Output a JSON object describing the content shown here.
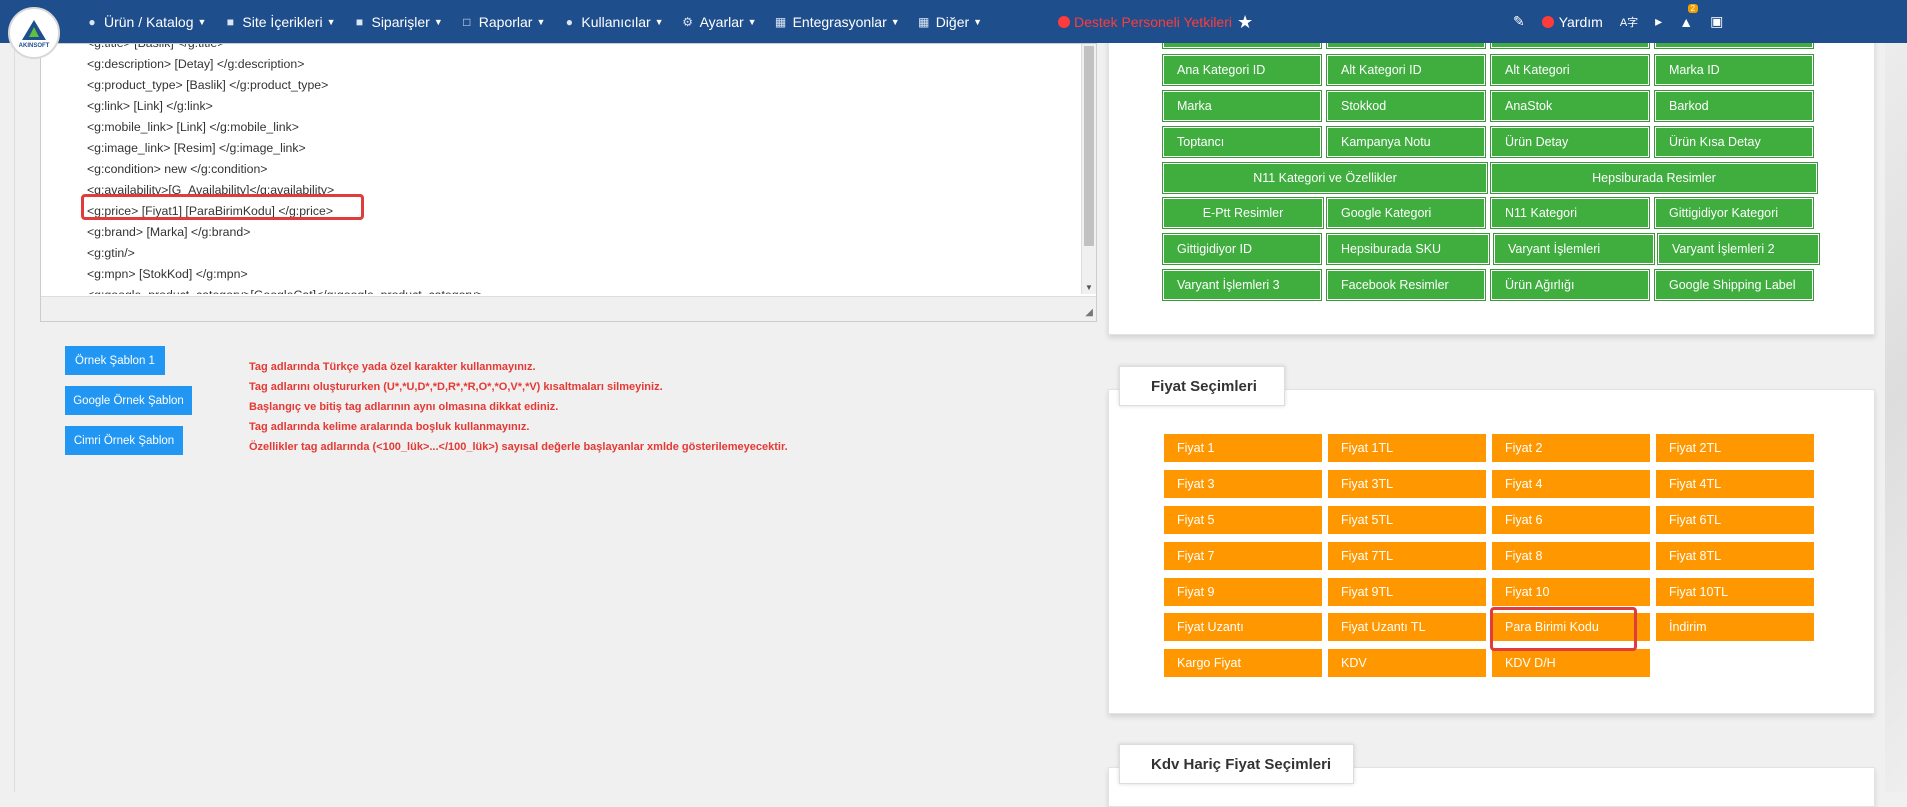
{
  "nav": {
    "logo_text": "AKINSOFT",
    "menu": [
      {
        "label": "Ürün / Katalog",
        "icon": "users-icon"
      },
      {
        "label": "Site İçerikleri",
        "icon": "files-icon"
      },
      {
        "label": "Siparişler",
        "icon": "truck-icon"
      },
      {
        "label": "Raporlar",
        "icon": "report-icon"
      },
      {
        "label": "Kullanıcılar",
        "icon": "user-group-icon"
      },
      {
        "label": "Ayarlar",
        "icon": "gears-icon"
      },
      {
        "label": "Entegrasyonlar",
        "icon": "sitemap-icon"
      },
      {
        "label": "Diğer",
        "icon": "grid-icon"
      }
    ],
    "support": "Destek Personeli Yetkileri",
    "help": "Yardım",
    "lang": "A字",
    "badge": "2"
  },
  "editor": {
    "lines": [
      "<g:description> [Detay] </g:description>",
      "<g:product_type> [Baslik] </g:product_type>",
      "<g:link> [Link] </g:link>",
      "<g:mobile_link> [Link] </g:mobile_link>",
      "<g:image_link> [Resim] </g:image_link>",
      "<g:condition> new </g:condition>",
      "<g:availability>[G_Availability]</g:availability>",
      "<g:price> [Fiyat1] [ParaBirimKodu] </g:price>",
      "<g:brand> [Marka] </g:brand>",
      "<g:gtin/>",
      "<g:mpn> [StokKod] </g:mpn>",
      "<g:google_product_category>[GoogleCat]</g:google_product_category>"
    ],
    "first_line": "<g:title> [Baslik] </g:title>"
  },
  "templates": {
    "ornek": "Örnek Şablon 1",
    "google": "Google Örnek Şablon",
    "cimri": "Cimri Örnek Şablon"
  },
  "warnings": [
    "Tag adlarında Türkçe yada özel karakter kullanmayınız.",
    "Tag adlarını oluştururken (U*,*U,D*,*D,R*,*R,O*,*O,V*,*V) kısaltmaları silmeyiniz.",
    "Başlangıç ve bitiş tag adlarının aynı olmasına dikkat ediniz.",
    "Tag adlarında kelime aralarında boşluk kullanmayınız.",
    "Özellikler tag adlarında (<100_lük>...</100_lük>) sayısal değerle başlayanlar xmlde gösterilemeyecektir."
  ],
  "product_fields": {
    "row1": [
      "Ana Kategori ID",
      "Alt Kategori ID",
      "Alt Kategori",
      "Marka ID"
    ],
    "row2": [
      "Marka",
      "Stokkod",
      "AnaStok",
      "Barkod"
    ],
    "row3": [
      "Toptancı",
      "Kampanya Notu",
      "Ürün Detay",
      "Ürün Kısa Detay"
    ],
    "row4": [
      "N11 Kategori ve Özellikler",
      "Hepsiburada Resimler"
    ],
    "row5": [
      "E-Ptt Resimler",
      "Google Kategori",
      "N11 Kategori",
      "Gittigidiyor Kategori"
    ],
    "row6": [
      "Gittigidiyor ID",
      "Hepsiburada SKU",
      "Varyant İşlemleri",
      "Varyant İşlemleri 2"
    ],
    "row7": [
      "Varyant İşlemleri 3",
      "Facebook Resimler",
      "Ürün Ağırlığı",
      "Google Shipping Label"
    ]
  },
  "price_section": {
    "title": "Fiyat Seçimleri",
    "buttons": [
      [
        "Fiyat 1",
        "Fiyat 1TL",
        "Fiyat 2",
        "Fiyat 2TL"
      ],
      [
        "Fiyat 3",
        "Fiyat 3TL",
        "Fiyat 4",
        "Fiyat 4TL"
      ],
      [
        "Fiyat 5",
        "Fiyat 5TL",
        "Fiyat 6",
        "Fiyat 6TL"
      ],
      [
        "Fiyat 7",
        "Fiyat 7TL",
        "Fiyat 8",
        "Fiyat 8TL"
      ],
      [
        "Fiyat 9",
        "Fiyat 9TL",
        "Fiyat 10",
        "Fiyat 10TL"
      ],
      [
        "Fiyat Uzantı",
        "Fiyat Uzantı TL",
        "Para Birimi Kodu",
        "İndirim"
      ],
      [
        "Kargo Fiyat",
        "KDV",
        "KDV D/H"
      ]
    ]
  },
  "kdv_section": {
    "title": "Kdv Hariç Fiyat Seçimleri"
  },
  "colors": {
    "navbar": "#1f4e8c",
    "green": "#3fae3f",
    "orange": "#ff9800",
    "blue": "#2196f3",
    "warning": "#e53935"
  }
}
